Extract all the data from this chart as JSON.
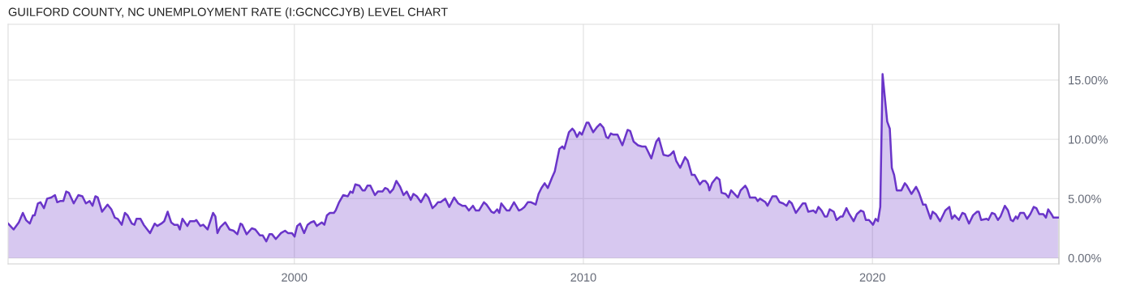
{
  "chart_data": {
    "type": "area",
    "title": "GUILFORD COUNTY, NC UNEMPLOYMENT RATE (I:GCNCCJYB) LEVEL CHART",
    "xlim": [
      1990.1,
      2026.45
    ],
    "xticks": [
      2000,
      2010,
      2020
    ],
    "ylim": [
      -0.5,
      19.7
    ],
    "yticks": [
      {
        "value": 0,
        "label": "0.00%"
      },
      {
        "value": 5,
        "label": "5.00%"
      },
      {
        "value": 10,
        "label": "10.00%"
      },
      {
        "value": 15,
        "label": "15.00%"
      }
    ],
    "grid": true,
    "legend": false,
    "series": [
      {
        "color": "#6a35c9",
        "x": [
          1990.1,
          1990.29,
          1990.47,
          1990.61,
          1990.72,
          1990.85,
          1990.96,
          1991.02,
          1991.13,
          1991.22,
          1991.34,
          1991.45,
          1991.59,
          1991.72,
          1991.8,
          1991.9,
          1992.01,
          1992.11,
          1992.2,
          1992.37,
          1992.53,
          1992.67,
          1992.79,
          1992.92,
          1993.02,
          1993.12,
          1993.2,
          1993.35,
          1993.54,
          1993.67,
          1993.79,
          1993.89,
          1994.03,
          1994.14,
          1994.23,
          1994.38,
          1994.47,
          1994.54,
          1994.68,
          1994.79,
          1995.01,
          1995.17,
          1995.26,
          1995.4,
          1995.5,
          1995.62,
          1995.74,
          1995.85,
          1995.97,
          1996.04,
          1996.13,
          1996.3,
          1996.39,
          1996.55,
          1996.61,
          1996.75,
          1996.85,
          1997.0,
          1997.19,
          1997.27,
          1997.34,
          1997.44,
          1997.61,
          1997.76,
          1997.9,
          1998.03,
          1998.14,
          1998.2,
          1998.35,
          1998.53,
          1998.65,
          1998.81,
          1998.91,
          1999.03,
          1999.14,
          1999.23,
          1999.36,
          1999.54,
          1999.68,
          1999.78,
          1999.92,
          2000.01,
          2000.1,
          2000.2,
          2000.34,
          2000.46,
          2000.57,
          2000.68,
          2000.78,
          2000.95,
          2001.04,
          2001.13,
          2001.23,
          2001.37,
          2001.43,
          2001.55,
          2001.69,
          2001.85,
          2001.94,
          2002.02,
          2002.11,
          2002.25,
          2002.36,
          2002.44,
          2002.53,
          2002.63,
          2002.79,
          2002.89,
          2002.98,
          2003.05,
          2003.14,
          2003.23,
          2003.31,
          2003.42,
          2003.53,
          2003.66,
          2003.78,
          2003.89,
          2004.03,
          2004.12,
          2004.24,
          2004.38,
          2004.54,
          2004.64,
          2004.78,
          2004.87,
          2004.97,
          2005.06,
          2005.22,
          2005.36,
          2005.53,
          2005.67,
          2005.81,
          2005.92,
          2006.04,
          2006.18,
          2006.28,
          2006.39,
          2006.56,
          2006.65,
          2006.82,
          2006.91,
          2007.02,
          2007.09,
          2007.16,
          2007.35,
          2007.44,
          2007.6,
          2007.77,
          2007.86,
          2007.96,
          2008.08,
          2008.19,
          2008.35,
          2008.45,
          2008.55,
          2008.66,
          2008.77,
          2008.92,
          2009.01,
          2009.17,
          2009.27,
          2009.34,
          2009.5,
          2009.62,
          2009.69,
          2009.78,
          2009.87,
          2009.95,
          2010.11,
          2010.18,
          2010.34,
          2010.46,
          2010.58,
          2010.69,
          2010.79,
          2010.86,
          2010.95,
          2011.04,
          2011.18,
          2011.35,
          2011.53,
          2011.62,
          2011.74,
          2011.89,
          2012.03,
          2012.15,
          2012.21,
          2012.35,
          2012.52,
          2012.61,
          2012.77,
          2012.93,
          2013.01,
          2013.12,
          2013.21,
          2013.35,
          2013.52,
          2013.61,
          2013.75,
          2013.85,
          2014.03,
          2014.13,
          2014.22,
          2014.31,
          2014.36,
          2014.45,
          2014.61,
          2014.71,
          2014.78,
          2014.92,
          2015.02,
          2015.11,
          2015.34,
          2015.44,
          2015.6,
          2015.67,
          2015.76,
          2015.95,
          2016.03,
          2016.11,
          2016.3,
          2016.37,
          2016.54,
          2016.67,
          2016.79,
          2016.91,
          2017.03,
          2017.12,
          2017.21,
          2017.35,
          2017.59,
          2017.68,
          2017.78,
          2017.96,
          2018.04,
          2018.13,
          2018.24,
          2018.35,
          2018.43,
          2018.52,
          2018.66,
          2018.76,
          2018.9,
          2018.97,
          2019.1,
          2019.2,
          2019.35,
          2019.46,
          2019.6,
          2019.69,
          2019.77,
          2019.88,
          2020.02,
          2020.11,
          2020.19,
          2020.27,
          2020.35,
          2020.51,
          2020.6,
          2020.67,
          2020.75,
          2020.84,
          2021.0,
          2021.12,
          2021.19,
          2021.35,
          2021.51,
          2021.61,
          2021.75,
          2021.84,
          2022.01,
          2022.08,
          2022.19,
          2022.34,
          2022.52,
          2022.66,
          2022.75,
          2022.84,
          2022.99,
          2023.11,
          2023.2,
          2023.34,
          2023.48,
          2023.62,
          2023.68,
          2023.76,
          2023.95,
          2024.01,
          2024.13,
          2024.23,
          2024.34,
          2024.43,
          2024.58,
          2024.69,
          2024.79,
          2024.86,
          2024.96,
          2025.02,
          2025.11,
          2025.24,
          2025.35,
          2025.46,
          2025.58,
          2025.67,
          2025.77,
          2025.91,
          2026.0,
          2026.08,
          2026.19,
          2026.26,
          2026.42
        ],
        "values": [
          2.9,
          2.4,
          3.0,
          3.8,
          3.2,
          2.9,
          3.6,
          3.6,
          4.6,
          4.7,
          4.2,
          5.0,
          5.1,
          5.3,
          4.7,
          4.8,
          4.8,
          5.6,
          5.5,
          4.6,
          5.3,
          5.2,
          4.6,
          4.8,
          4.4,
          5.2,
          5.1,
          3.9,
          4.5,
          4.1,
          3.4,
          3.3,
          2.8,
          3.8,
          3.6,
          2.9,
          2.8,
          3.3,
          3.3,
          2.8,
          2.1,
          2.9,
          2.7,
          2.9,
          3.1,
          3.9,
          3.0,
          2.8,
          2.8,
          2.4,
          3.3,
          2.7,
          3.1,
          3.1,
          3.2,
          2.7,
          2.8,
          2.4,
          3.8,
          3.5,
          2.1,
          2.6,
          3.0,
          2.4,
          2.3,
          2.0,
          2.9,
          2.8,
          2.0,
          2.5,
          2.4,
          1.9,
          1.9,
          1.4,
          2.0,
          2.0,
          1.6,
          2.1,
          2.3,
          2.1,
          2.1,
          1.8,
          2.7,
          2.9,
          2.1,
          2.8,
          3.0,
          3.1,
          2.7,
          3.0,
          2.8,
          3.6,
          3.8,
          3.8,
          4.0,
          4.7,
          5.3,
          5.2,
          5.6,
          5.5,
          6.2,
          6.1,
          5.7,
          5.7,
          6.1,
          6.1,
          5.3,
          5.6,
          5.6,
          5.6,
          5.9,
          5.8,
          5.5,
          5.8,
          6.5,
          6.0,
          5.3,
          5.6,
          4.9,
          5.4,
          5.2,
          4.7,
          5.4,
          5.1,
          4.2,
          4.4,
          4.7,
          4.7,
          5.0,
          4.3,
          5.1,
          4.6,
          4.4,
          4.4,
          4.0,
          4.4,
          4.0,
          4.0,
          4.7,
          4.5,
          3.9,
          3.8,
          4.1,
          3.8,
          4.6,
          4.0,
          4.0,
          4.7,
          4.0,
          4.1,
          4.3,
          4.7,
          4.7,
          4.5,
          5.4,
          5.9,
          6.3,
          5.9,
          6.8,
          7.3,
          9.2,
          9.4,
          9.2,
          10.6,
          10.9,
          10.7,
          10.2,
          10.6,
          10.4,
          11.4,
          11.4,
          10.6,
          11.0,
          11.3,
          11.0,
          10.2,
          10.1,
          10.5,
          10.4,
          10.4,
          9.5,
          10.8,
          10.7,
          9.8,
          9.5,
          9.4,
          9.4,
          9.1,
          8.4,
          9.8,
          10.1,
          8.7,
          8.6,
          8.7,
          9.0,
          8.2,
          7.6,
          8.5,
          8.2,
          7.0,
          7.0,
          6.2,
          6.5,
          6.5,
          6.2,
          5.7,
          6.3,
          6.8,
          6.6,
          5.5,
          5.4,
          5.1,
          5.7,
          5.1,
          5.7,
          6.1,
          5.8,
          5.1,
          5.1,
          4.8,
          5.0,
          4.7,
          4.4,
          5.2,
          5.2,
          4.7,
          4.6,
          4.4,
          4.8,
          4.6,
          3.8,
          4.6,
          4.6,
          3.9,
          4.0,
          3.8,
          4.3,
          4.0,
          3.5,
          3.5,
          4.1,
          3.9,
          3.2,
          3.5,
          3.5,
          4.2,
          3.7,
          3.1,
          3.7,
          4.0,
          3.9,
          3.2,
          3.2,
          2.8,
          3.3,
          3.1,
          4.3,
          15.5,
          11.5,
          10.9,
          7.6,
          7.0,
          5.7,
          5.7,
          6.3,
          6.1,
          5.4,
          6.0,
          5.5,
          4.5,
          4.5,
          3.3,
          3.9,
          3.7,
          3.1,
          4.0,
          4.3,
          3.3,
          3.6,
          3.2,
          3.8,
          3.7,
          2.9,
          3.6,
          3.9,
          3.9,
          3.2,
          3.3,
          3.2,
          3.8,
          3.7,
          3.2,
          3.5,
          4.4,
          4.0,
          3.2,
          3.1,
          3.5,
          3.3,
          3.8,
          3.8,
          3.3,
          3.7,
          4.3,
          4.2,
          3.7,
          3.7,
          3.4,
          4.1,
          3.7,
          3.4,
          3.4
        ]
      }
    ]
  }
}
